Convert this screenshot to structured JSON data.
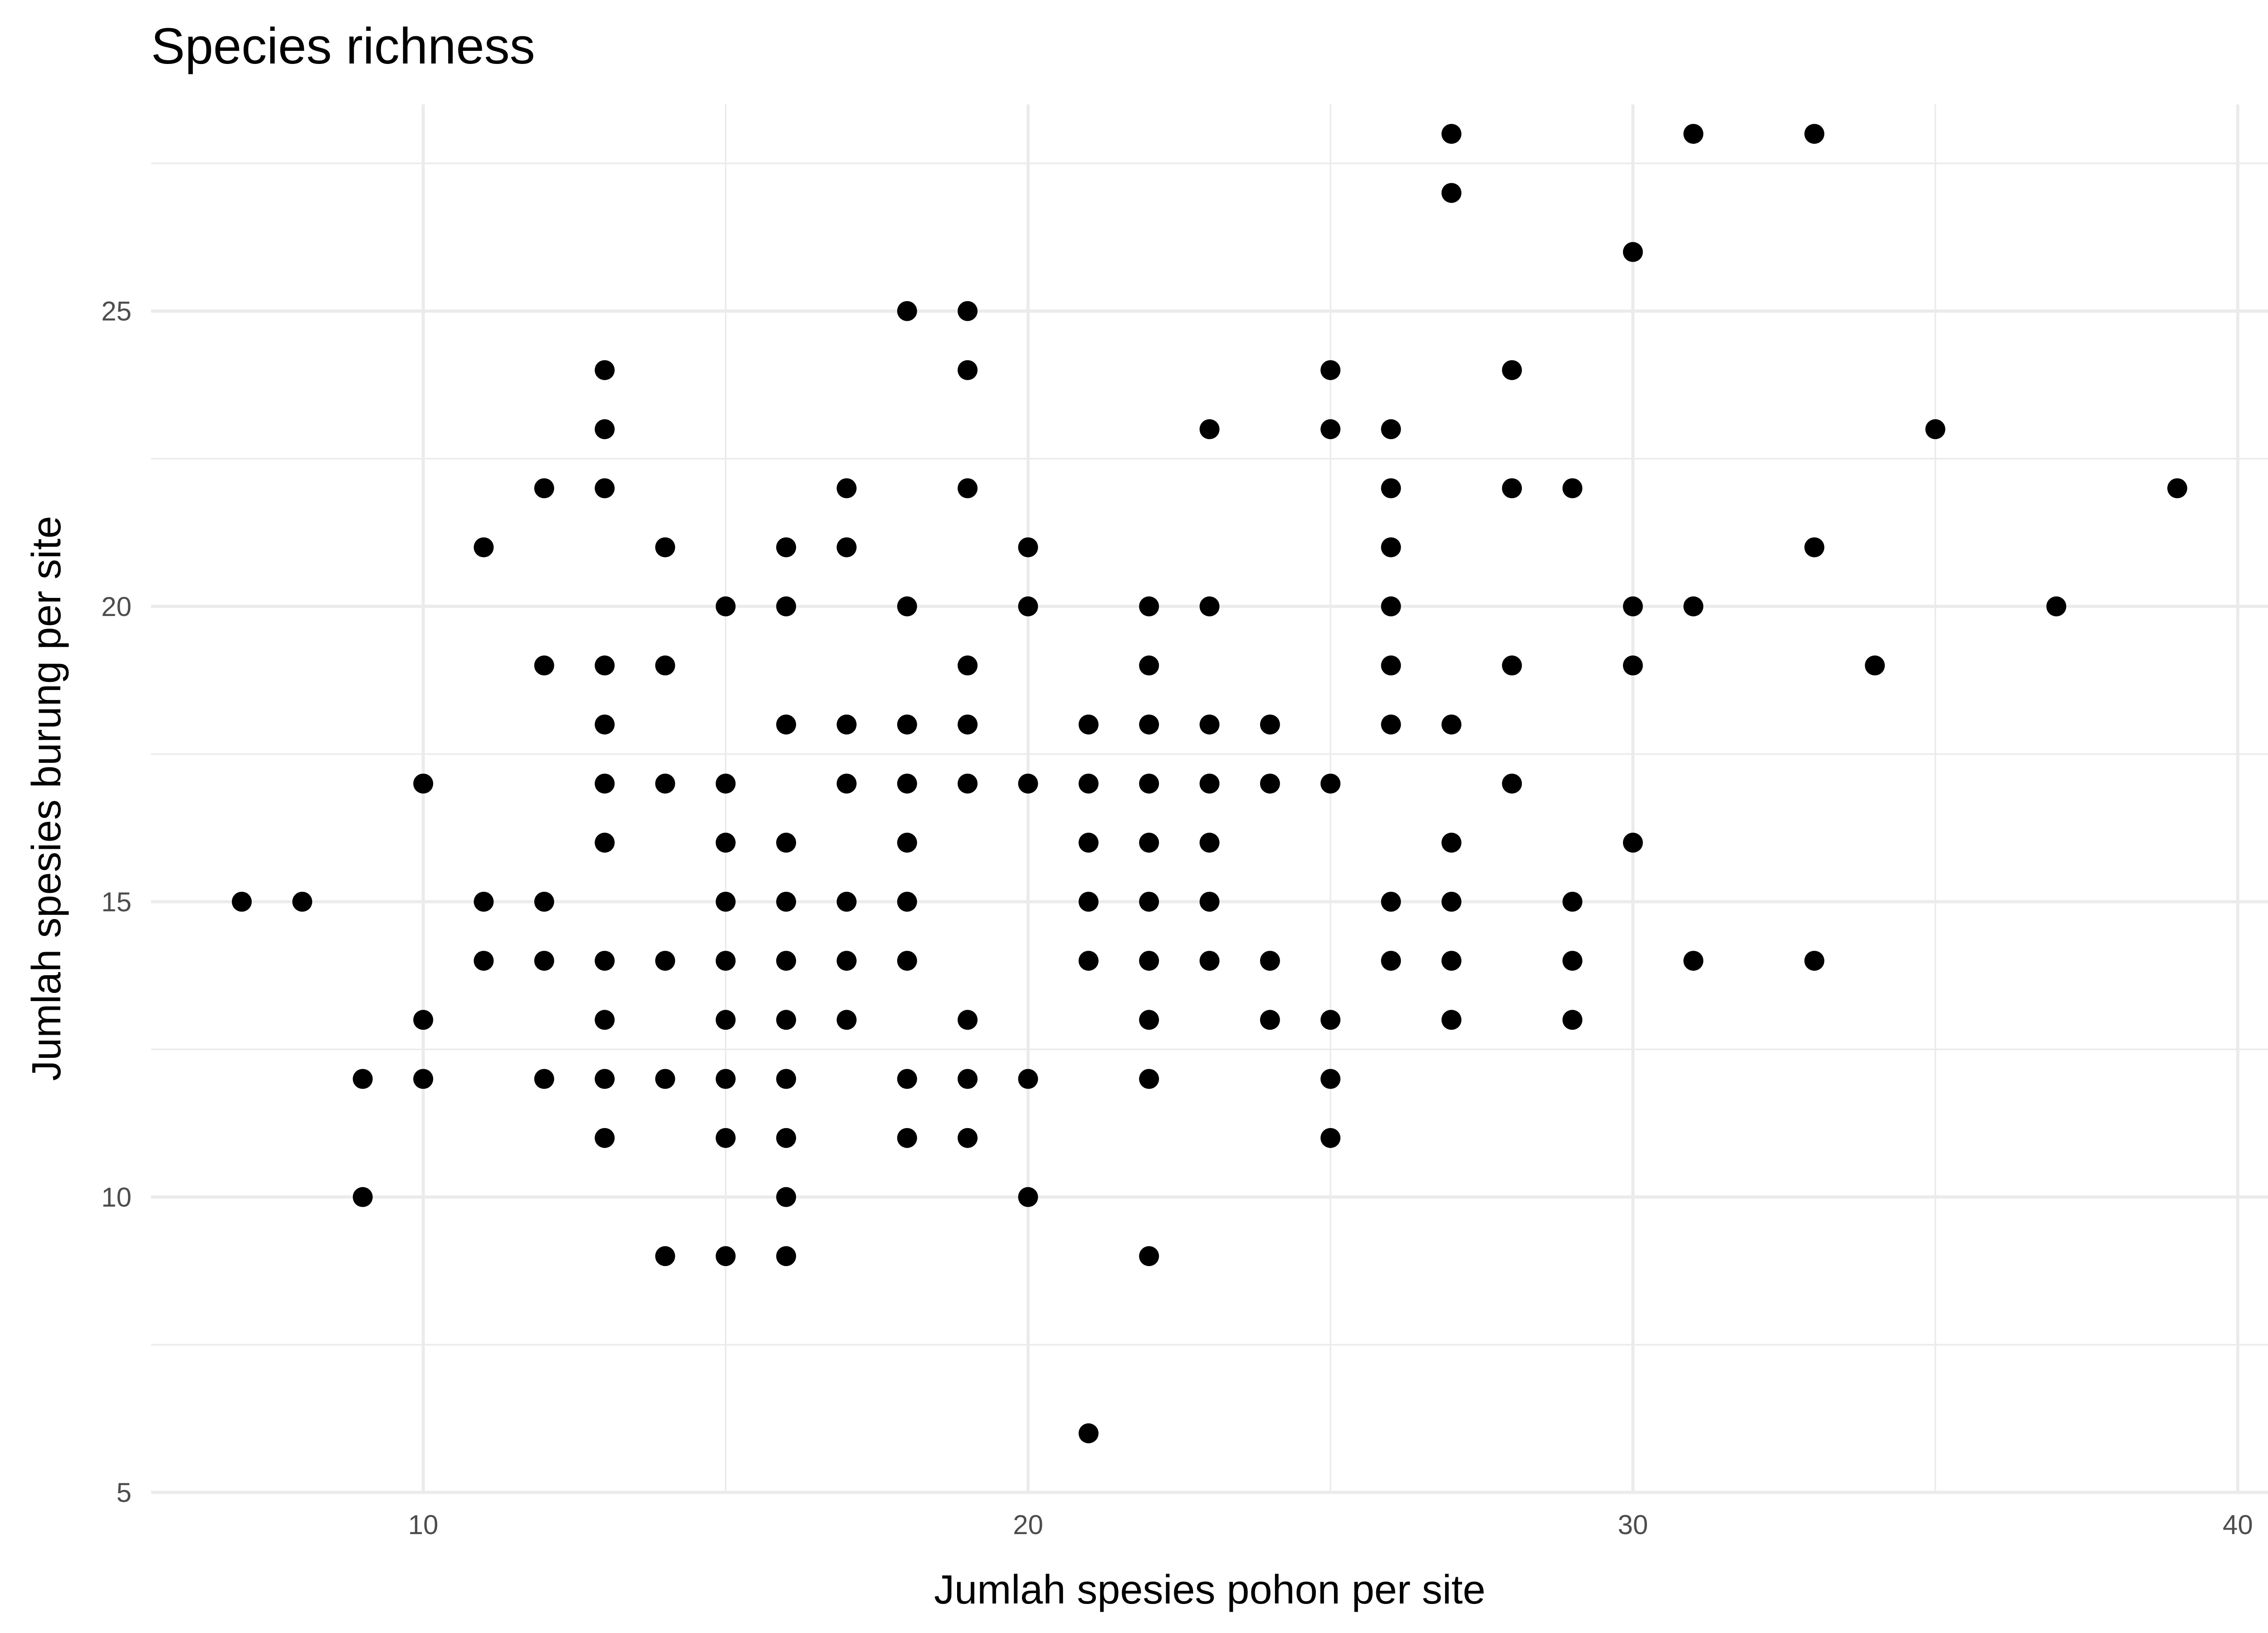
{
  "chart_data": {
    "type": "scatter",
    "title": "Species richness",
    "xlabel": "Jumlah spesies pohon per site",
    "ylabel": "Jumlah spesies burung per site",
    "xlim": [
      5.5,
      40.5
    ],
    "ylim": [
      5,
      28.5
    ],
    "x_ticks": [
      10,
      20,
      30,
      40
    ],
    "y_ticks": [
      5,
      10,
      15,
      20,
      25
    ],
    "grid": true,
    "legend": "none",
    "colors": {
      "point": "#000000",
      "grid": "#ebebeb",
      "tick_text": "#4d4d4d"
    },
    "series": [
      {
        "points": [
          [
            7,
            15
          ],
          [
            8,
            15
          ],
          [
            9,
            12
          ],
          [
            9,
            10
          ],
          [
            10,
            17
          ],
          [
            10,
            13
          ],
          [
            10,
            12
          ],
          [
            11,
            21
          ],
          [
            11,
            15
          ],
          [
            11,
            14
          ],
          [
            12,
            22
          ],
          [
            12,
            19
          ],
          [
            12,
            15
          ],
          [
            12,
            14
          ],
          [
            12,
            12
          ],
          [
            13,
            24
          ],
          [
            13,
            23
          ],
          [
            13,
            22
          ],
          [
            13,
            19
          ],
          [
            13,
            18
          ],
          [
            13,
            17
          ],
          [
            13,
            16
          ],
          [
            13,
            14
          ],
          [
            13,
            13
          ],
          [
            13,
            12
          ],
          [
            13,
            11
          ],
          [
            14,
            21
          ],
          [
            14,
            19
          ],
          [
            14,
            17
          ],
          [
            14,
            14
          ],
          [
            14,
            12
          ],
          [
            14,
            9
          ],
          [
            15,
            20
          ],
          [
            15,
            17
          ],
          [
            15,
            16
          ],
          [
            15,
            15
          ],
          [
            15,
            14
          ],
          [
            15,
            13
          ],
          [
            15,
            12
          ],
          [
            15,
            11
          ],
          [
            15,
            9
          ],
          [
            16,
            21
          ],
          [
            16,
            20
          ],
          [
            16,
            18
          ],
          [
            16,
            16
          ],
          [
            16,
            15
          ],
          [
            16,
            14
          ],
          [
            16,
            13
          ],
          [
            16,
            12
          ],
          [
            16,
            11
          ],
          [
            16,
            10
          ],
          [
            16,
            9
          ],
          [
            17,
            22
          ],
          [
            17,
            21
          ],
          [
            17,
            18
          ],
          [
            17,
            17
          ],
          [
            17,
            15
          ],
          [
            17,
            14
          ],
          [
            17,
            13
          ],
          [
            18,
            25
          ],
          [
            18,
            20
          ],
          [
            18,
            18
          ],
          [
            18,
            17
          ],
          [
            18,
            16
          ],
          [
            18,
            15
          ],
          [
            18,
            14
          ],
          [
            18,
            12
          ],
          [
            18,
            11
          ],
          [
            19,
            25
          ],
          [
            19,
            24
          ],
          [
            19,
            22
          ],
          [
            19,
            19
          ],
          [
            19,
            18
          ],
          [
            19,
            17
          ],
          [
            19,
            13
          ],
          [
            19,
            12
          ],
          [
            19,
            11
          ],
          [
            20,
            21
          ],
          [
            20,
            20
          ],
          [
            20,
            17
          ],
          [
            20,
            12
          ],
          [
            20,
            10
          ],
          [
            21,
            18
          ],
          [
            21,
            17
          ],
          [
            21,
            16
          ],
          [
            21,
            15
          ],
          [
            21,
            14
          ],
          [
            21,
            6
          ],
          [
            22,
            20
          ],
          [
            22,
            19
          ],
          [
            22,
            18
          ],
          [
            22,
            17
          ],
          [
            22,
            16
          ],
          [
            22,
            15
          ],
          [
            22,
            14
          ],
          [
            22,
            13
          ],
          [
            22,
            12
          ],
          [
            22,
            9
          ],
          [
            23,
            23
          ],
          [
            23,
            20
          ],
          [
            23,
            18
          ],
          [
            23,
            17
          ],
          [
            23,
            16
          ],
          [
            23,
            15
          ],
          [
            23,
            14
          ],
          [
            24,
            18
          ],
          [
            24,
            17
          ],
          [
            24,
            14
          ],
          [
            24,
            13
          ],
          [
            25,
            24
          ],
          [
            25,
            23
          ],
          [
            25,
            17
          ],
          [
            25,
            13
          ],
          [
            25,
            12
          ],
          [
            25,
            11
          ],
          [
            26,
            23
          ],
          [
            26,
            22
          ],
          [
            26,
            21
          ],
          [
            26,
            20
          ],
          [
            26,
            19
          ],
          [
            26,
            18
          ],
          [
            26,
            15
          ],
          [
            26,
            14
          ],
          [
            27,
            28
          ],
          [
            27,
            27
          ],
          [
            27,
            18
          ],
          [
            27,
            16
          ],
          [
            27,
            15
          ],
          [
            27,
            14
          ],
          [
            27,
            13
          ],
          [
            28,
            24
          ],
          [
            28,
            22
          ],
          [
            28,
            19
          ],
          [
            28,
            17
          ],
          [
            29,
            22
          ],
          [
            29,
            15
          ],
          [
            29,
            14
          ],
          [
            29,
            13
          ],
          [
            30,
            26
          ],
          [
            30,
            20
          ],
          [
            30,
            19
          ],
          [
            30,
            16
          ],
          [
            31,
            28
          ],
          [
            31,
            20
          ],
          [
            31,
            14
          ],
          [
            33,
            28
          ],
          [
            33,
            21
          ],
          [
            33,
            14
          ],
          [
            34,
            19
          ],
          [
            35,
            23
          ],
          [
            37,
            20
          ],
          [
            39,
            22
          ]
        ]
      }
    ]
  }
}
